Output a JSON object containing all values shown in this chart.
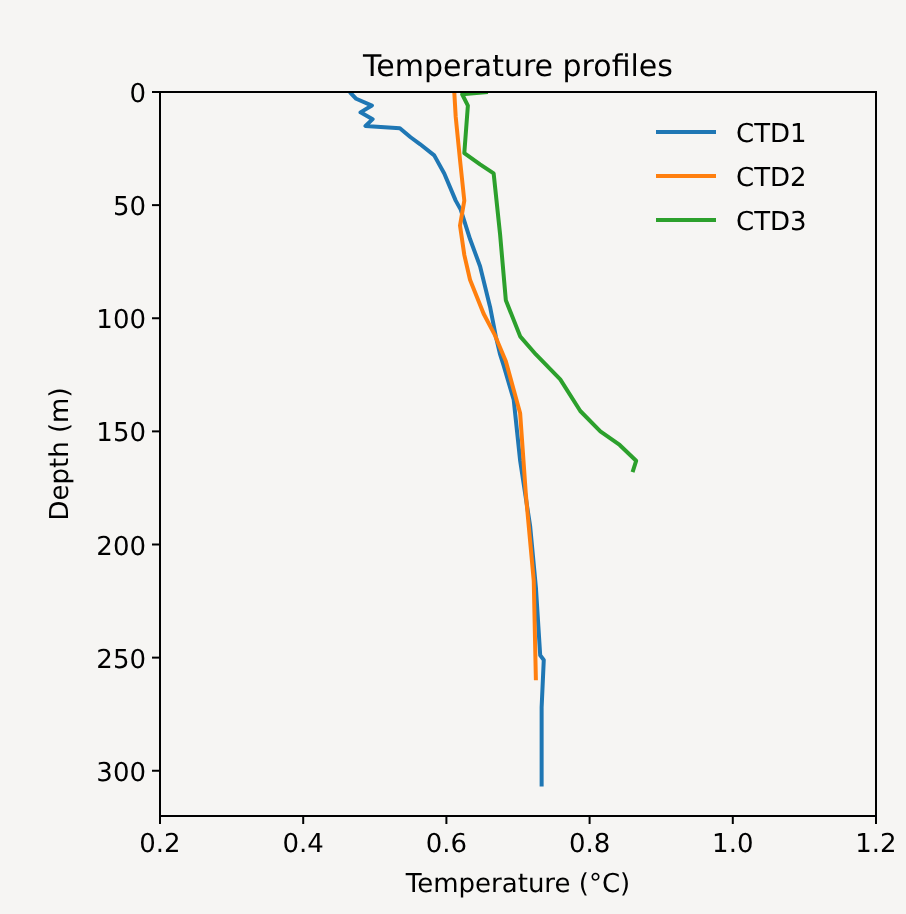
{
  "chart_data": {
    "type": "line",
    "title": "Temperature profiles",
    "xlabel": "Temperature (°C)",
    "ylabel": "Depth (m)",
    "xlim": [
      0.2,
      1.2
    ],
    "xticks": [
      0.2,
      0.4,
      0.6,
      0.8,
      {
        "value": 1,
        "label": "1.0"
      },
      1.2
    ],
    "ylim": [
      320,
      0
    ],
    "yticks": [
      0,
      50,
      100,
      150,
      200,
      250,
      300
    ],
    "legend": "top right",
    "grid": false,
    "series": [
      {
        "name": "CTD1",
        "color": "#1f77b4",
        "x": [
          0.465,
          0.474,
          0.496,
          0.48,
          0.497,
          0.487,
          0.535,
          0.55,
          0.563,
          0.583,
          0.597,
          0.613,
          0.62,
          0.633,
          0.647,
          0.661,
          0.669,
          0.675,
          0.68,
          0.694,
          0.703,
          0.717,
          0.725,
          0.731,
          0.736,
          0.733,
          0.733
        ],
        "values": [
          0,
          3,
          6,
          9,
          12,
          15,
          16,
          20,
          23,
          28,
          36,
          48,
          52,
          65,
          77,
          95,
          108,
          116,
          121,
          136,
          163,
          192,
          219,
          249,
          251,
          272,
          307
        ]
      },
      {
        "name": "CTD2",
        "color": "#ff7f0e",
        "x": [
          0.611,
          0.613,
          0.619,
          0.625,
          0.619,
          0.625,
          0.633,
          0.652,
          0.667,
          0.683,
          0.703,
          0.711,
          0.722,
          0.725
        ],
        "values": [
          0,
          11,
          30,
          48,
          59,
          72,
          83,
          98,
          107,
          119,
          142,
          178,
          216,
          260
        ]
      },
      {
        "name": "CTD3",
        "color": "#2ca02c",
        "x": [
          0.658,
          0.622,
          0.63,
          0.625,
          0.647,
          0.666,
          0.675,
          0.683,
          0.703,
          0.725,
          0.759,
          0.787,
          0.815,
          0.842,
          0.865,
          0.86
        ],
        "values": [
          0,
          1,
          6,
          27,
          32,
          36,
          63,
          92,
          108,
          116,
          127,
          141,
          150,
          156,
          163,
          168
        ]
      }
    ]
  }
}
